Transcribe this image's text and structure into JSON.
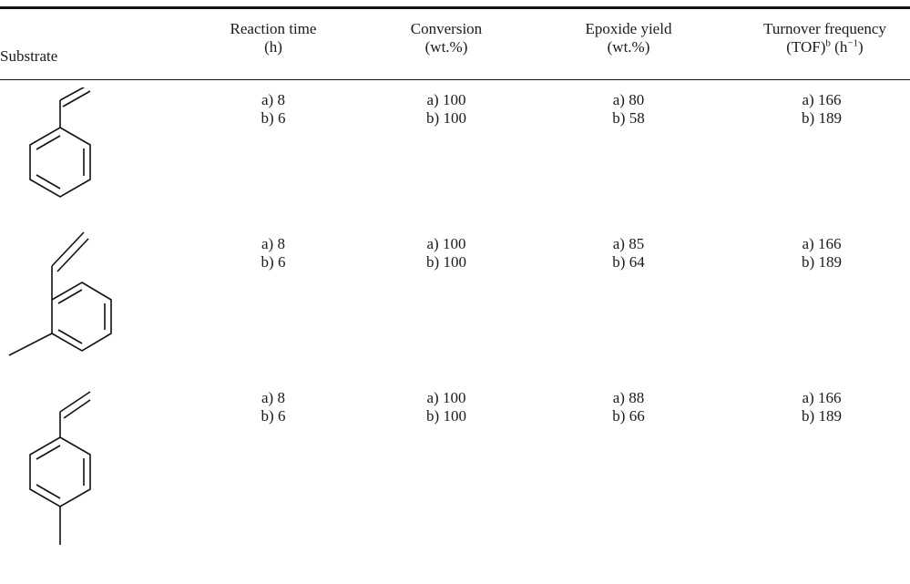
{
  "table": {
    "headers": {
      "substrate": "Substrate",
      "reaction_time": {
        "line1": "Reaction time",
        "line2": "(h)"
      },
      "conversion": {
        "line1": "Conversion",
        "line2": "(wt.%)"
      },
      "epoxide_yield": {
        "line1": "Epoxide yield",
        "line2": "(wt.%)"
      },
      "tof": {
        "line1": "Turnover frequency",
        "line2_pre": "(TOF)",
        "line2_sup": "b",
        "line2_mid": " (h",
        "line2_sup2": "−1",
        "line2_post": ")"
      }
    },
    "rows": [
      {
        "substrate_icon": "styrene-structure",
        "reaction_time": [
          "a) 8",
          "b) 6"
        ],
        "conversion": [
          "a) 100",
          "b) 100"
        ],
        "epoxide_yield": [
          "a) 80",
          "b) 58"
        ],
        "tof": [
          "a) 166",
          "b) 189"
        ]
      },
      {
        "substrate_icon": "3-methylstyrene-structure",
        "reaction_time": [
          "a) 8",
          "b) 6"
        ],
        "conversion": [
          "a) 100",
          "b) 100"
        ],
        "epoxide_yield": [
          "a) 85",
          "b) 64"
        ],
        "tof": [
          "a) 166",
          "b) 189"
        ]
      },
      {
        "substrate_icon": "4-methylstyrene-structure",
        "reaction_time": [
          "a) 8",
          "b) 6"
        ],
        "conversion": [
          "a) 100",
          "b) 100"
        ],
        "epoxide_yield": [
          "a) 88",
          "b) 66"
        ],
        "tof": [
          "a) 166",
          "b) 189"
        ]
      }
    ]
  }
}
